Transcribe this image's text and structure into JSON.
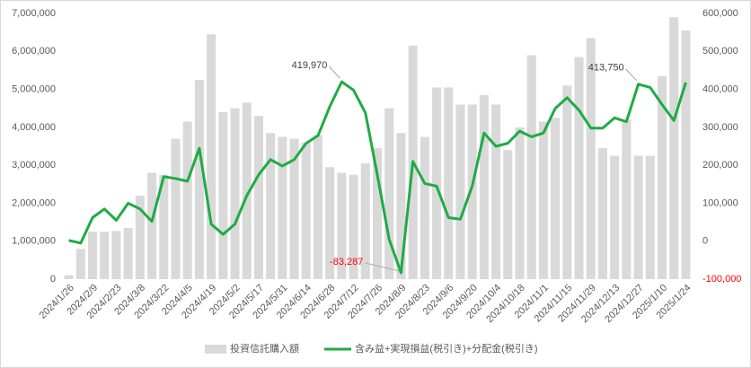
{
  "chart_data": {
    "type": "bar-line",
    "categories": [
      "2024/1/26",
      null,
      "2024/2/9",
      null,
      "2024/2/23",
      null,
      "2024/3/8",
      null,
      "2024/3/22",
      null,
      "2024/4/5",
      null,
      "2024/4/19",
      null,
      "2024/5/2",
      null,
      "2024/5/17",
      null,
      "2024/5/31",
      null,
      "2024/6/14",
      null,
      "2024/6/28",
      null,
      "2024/7/12",
      null,
      "2024/7/26",
      null,
      "2024/8/9",
      null,
      "2024/8/23",
      null,
      "2024/9/6",
      null,
      "2024/9/20",
      null,
      "2024/10/4",
      null,
      "2024/10/18",
      null,
      "2024/11/1",
      null,
      "2024/11/15",
      null,
      "2024/11/29",
      null,
      "2024/12/13",
      null,
      "2024/12/27",
      null,
      "2025/1/10",
      null,
      "2025/1/24"
    ],
    "series": [
      {
        "name": "投資信託購入額",
        "type": "bar",
        "axis": "y",
        "color": "#d9d9d9",
        "values": [
          100000,
          800000,
          1250000,
          1250000,
          1270000,
          1350000,
          2200000,
          2800000,
          2750000,
          3700000,
          4150000,
          5250000,
          6450000,
          4400000,
          4500000,
          4650000,
          4300000,
          3850000,
          3750000,
          3700000,
          3600000,
          3800000,
          2950000,
          2800000,
          2750000,
          3050000,
          3450000,
          4500000,
          3850000,
          6150000,
          3750000,
          5050000,
          5050000,
          4600000,
          4600000,
          4850000,
          4600000,
          3400000,
          4000000,
          5900000,
          4150000,
          4250000,
          5100000,
          5850000,
          6350000,
          3450000,
          3250000,
          4200000,
          3250000,
          3250000,
          5350000,
          6900000,
          6550000
        ]
      },
      {
        "name": "含み益+実現損益(税引き)+分配金(税引き)",
        "type": "line",
        "axis": "y2",
        "color": "#1fab44",
        "values": [
          2000,
          -5000,
          62000,
          85000,
          55000,
          100000,
          85000,
          52000,
          170000,
          165000,
          158000,
          245000,
          45000,
          18000,
          45000,
          120000,
          175000,
          215000,
          198000,
          215000,
          258000,
          278000,
          355000,
          419970,
          398000,
          338000,
          175000,
          5000,
          -83287,
          210000,
          152000,
          145000,
          62000,
          58000,
          145000,
          285000,
          250000,
          258000,
          290000,
          275000,
          285000,
          350000,
          378000,
          345000,
          298000,
          298000,
          325000,
          315000,
          413750,
          405000,
          360000,
          318000,
          418000
        ],
        "value_labels": [
          null,
          null,
          null,
          null,
          null,
          null,
          null,
          null,
          null,
          null,
          null,
          null,
          null,
          null,
          null,
          null,
          null,
          null,
          null,
          null,
          null,
          null,
          null,
          "419,970",
          null,
          null,
          null,
          null,
          "-83,287",
          null,
          null,
          null,
          null,
          null,
          null,
          null,
          null,
          null,
          null,
          null,
          null,
          null,
          null,
          null,
          null,
          null,
          null,
          null,
          "413,750",
          null,
          null,
          null,
          null
        ]
      }
    ],
    "ylim": [
      0,
      7000000
    ],
    "yticks": [
      0,
      {
        "value": 1000000,
        "label": "1,000,000"
      },
      {
        "value": 2000000,
        "label": "2,000,000"
      },
      {
        "value": 3000000,
        "label": "3,000,000"
      },
      {
        "value": 4000000,
        "label": "4,000,000"
      },
      {
        "value": 5000000,
        "label": "5,000,000"
      },
      {
        "value": 6000000,
        "label": "6,000,000"
      },
      {
        "value": 7000000,
        "label": "7,000,000"
      }
    ],
    "y2lim": [
      -100000,
      600000
    ],
    "y2ticks": [
      {
        "value": -100000,
        "label": "-100,000"
      },
      0,
      {
        "value": 100000,
        "label": "100,000"
      },
      {
        "value": 200000,
        "label": "200,000"
      },
      {
        "value": 300000,
        "label": "300,000"
      },
      {
        "value": 400000,
        "label": "400,000"
      },
      {
        "value": 500000,
        "label": "500,000"
      },
      {
        "value": 600000,
        "label": "600,000"
      }
    ],
    "negative_color": "#ff0000",
    "grid": false,
    "legend": "bottom"
  }
}
